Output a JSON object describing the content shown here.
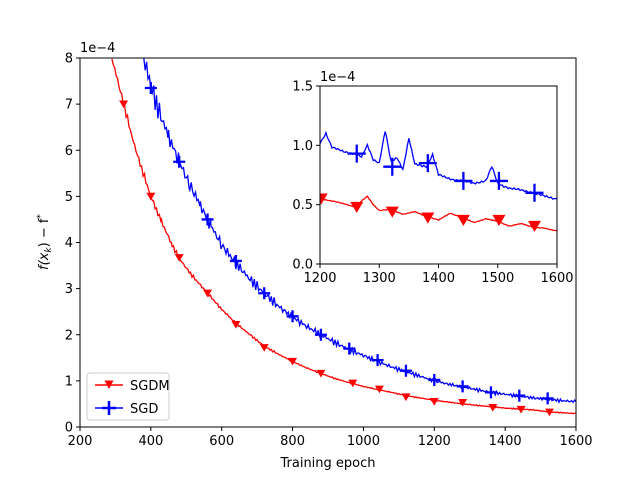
{
  "chart_data": [
    {
      "type": "line",
      "xlabel": "Training epoch",
      "ylabel_main": "f(x",
      "ylabel_sub": "k",
      "ylabel_tail": ") − f",
      "ylabel_sup": "*",
      "scale_label": "1e−4",
      "xlim": [
        200,
        1600
      ],
      "ylim": [
        0,
        8
      ],
      "xticks": [
        "200",
        "400",
        "600",
        "800",
        "1000",
        "1200",
        "1400",
        "1600"
      ],
      "yticks": [
        "0",
        "1",
        "2",
        "3",
        "4",
        "5",
        "6",
        "7",
        "8"
      ],
      "legend": {
        "position": "lower-left",
        "entries": [
          "SGDM",
          "SGD"
        ]
      },
      "series": [
        {
          "name": "SGDM",
          "color": "#ff0000",
          "marker": "triangle-down",
          "x": [
            290,
            310,
            330,
            350,
            370,
            400,
            430,
            460,
            480,
            520,
            560,
            600,
            640,
            680,
            720,
            760,
            800,
            840,
            880,
            920,
            960,
            1000,
            1040,
            1080,
            1120,
            1160,
            1200,
            1240,
            1280,
            1320,
            1360,
            1400,
            1440,
            1480,
            1520,
            1560,
            1600
          ],
          "values": [
            8.0,
            7.4,
            6.8,
            6.2,
            5.7,
            5.0,
            4.45,
            3.95,
            3.65,
            3.25,
            2.9,
            2.55,
            2.25,
            2.0,
            1.75,
            1.58,
            1.42,
            1.28,
            1.16,
            1.05,
            0.96,
            0.88,
            0.81,
            0.75,
            0.68,
            0.63,
            0.58,
            0.54,
            0.5,
            0.47,
            0.44,
            0.41,
            0.39,
            0.37,
            0.33,
            0.31,
            0.29
          ],
          "marker_x": [
            323,
            400,
            480,
            560,
            640,
            720,
            800,
            880,
            970,
            1045,
            1120,
            1200,
            1280,
            1365,
            1445,
            1525
          ],
          "marker_values": [
            7.0,
            5.0,
            3.67,
            2.9,
            2.22,
            1.72,
            1.42,
            1.16,
            0.95,
            0.82,
            0.65,
            0.55,
            0.53,
            0.42,
            0.38,
            0.32
          ]
        },
        {
          "name": "SGD",
          "color": "#0000ff",
          "marker": "plus",
          "x": [
            380,
            400,
            420,
            450,
            480,
            510,
            540,
            570,
            600,
            640,
            680,
            720,
            760,
            800,
            840,
            880,
            920,
            960,
            1000,
            1040,
            1080,
            1120,
            1160,
            1200,
            1240,
            1280,
            1320,
            1360,
            1400,
            1440,
            1480,
            1520,
            1560,
            1600
          ],
          "values": [
            8.0,
            7.4,
            6.9,
            6.3,
            5.75,
            5.25,
            4.8,
            4.35,
            3.95,
            3.55,
            3.2,
            2.9,
            2.62,
            2.38,
            2.18,
            2.0,
            1.83,
            1.68,
            1.55,
            1.42,
            1.3,
            1.2,
            1.1,
            1.0,
            0.93,
            0.87,
            0.81,
            0.75,
            0.71,
            0.67,
            0.63,
            0.6,
            0.57,
            0.55
          ],
          "marker_x": [
            400,
            480,
            560,
            640,
            720,
            800,
            880,
            960,
            1040,
            1120,
            1200,
            1280,
            1360,
            1440,
            1520
          ],
          "marker_values": [
            7.35,
            5.75,
            4.5,
            3.6,
            2.9,
            2.4,
            2.0,
            1.7,
            1.45,
            1.22,
            1.02,
            0.88,
            0.75,
            0.68,
            0.62
          ]
        }
      ]
    },
    {
      "type": "line",
      "role": "inset",
      "scale_label": "1e−4",
      "xlim": [
        1200,
        1600
      ],
      "ylim": [
        0,
        1.5
      ],
      "xticks": [
        "1200",
        "1300",
        "1400",
        "1500",
        "1600"
      ],
      "yticks": [
        "0.0",
        "0.5",
        "1.0",
        "1.5"
      ],
      "series": [
        {
          "name": "SGDM",
          "color": "#ff0000",
          "x": [
            1200,
            1220,
            1240,
            1260,
            1270,
            1280,
            1290,
            1300,
            1320,
            1340,
            1360,
            1380,
            1400,
            1420,
            1440,
            1460,
            1480,
            1500,
            1520,
            1540,
            1560,
            1580,
            1600
          ],
          "values": [
            0.55,
            0.53,
            0.51,
            0.48,
            0.53,
            0.57,
            0.5,
            0.45,
            0.46,
            0.42,
            0.44,
            0.4,
            0.37,
            0.43,
            0.39,
            0.35,
            0.38,
            0.36,
            0.32,
            0.34,
            0.31,
            0.3,
            0.28
          ],
          "marker_x": [
            1202,
            1262,
            1322,
            1382,
            1442,
            1502,
            1562
          ],
          "marker_values": [
            0.55,
            0.48,
            0.44,
            0.39,
            0.37,
            0.37,
            0.32
          ]
        },
        {
          "name": "SGD",
          "color": "#0000ff",
          "x": [
            1200,
            1210,
            1220,
            1240,
            1260,
            1270,
            1280,
            1290,
            1300,
            1310,
            1320,
            1330,
            1340,
            1350,
            1360,
            1380,
            1390,
            1400,
            1420,
            1440,
            1460,
            1480,
            1490,
            1500,
            1520,
            1540,
            1560,
            1580,
            1600
          ],
          "values": [
            1.02,
            1.1,
            0.98,
            0.95,
            0.93,
            0.9,
            1.0,
            0.88,
            0.85,
            1.12,
            0.86,
            0.9,
            0.8,
            1.06,
            0.84,
            0.82,
            0.92,
            0.75,
            0.72,
            0.7,
            0.68,
            0.7,
            0.82,
            0.68,
            0.64,
            0.62,
            0.6,
            0.57,
            0.55
          ],
          "marker_x": [
            1262,
            1322,
            1382,
            1442,
            1502,
            1562
          ],
          "marker_values": [
            0.93,
            0.82,
            0.85,
            0.7,
            0.7,
            0.6
          ]
        }
      ]
    }
  ]
}
